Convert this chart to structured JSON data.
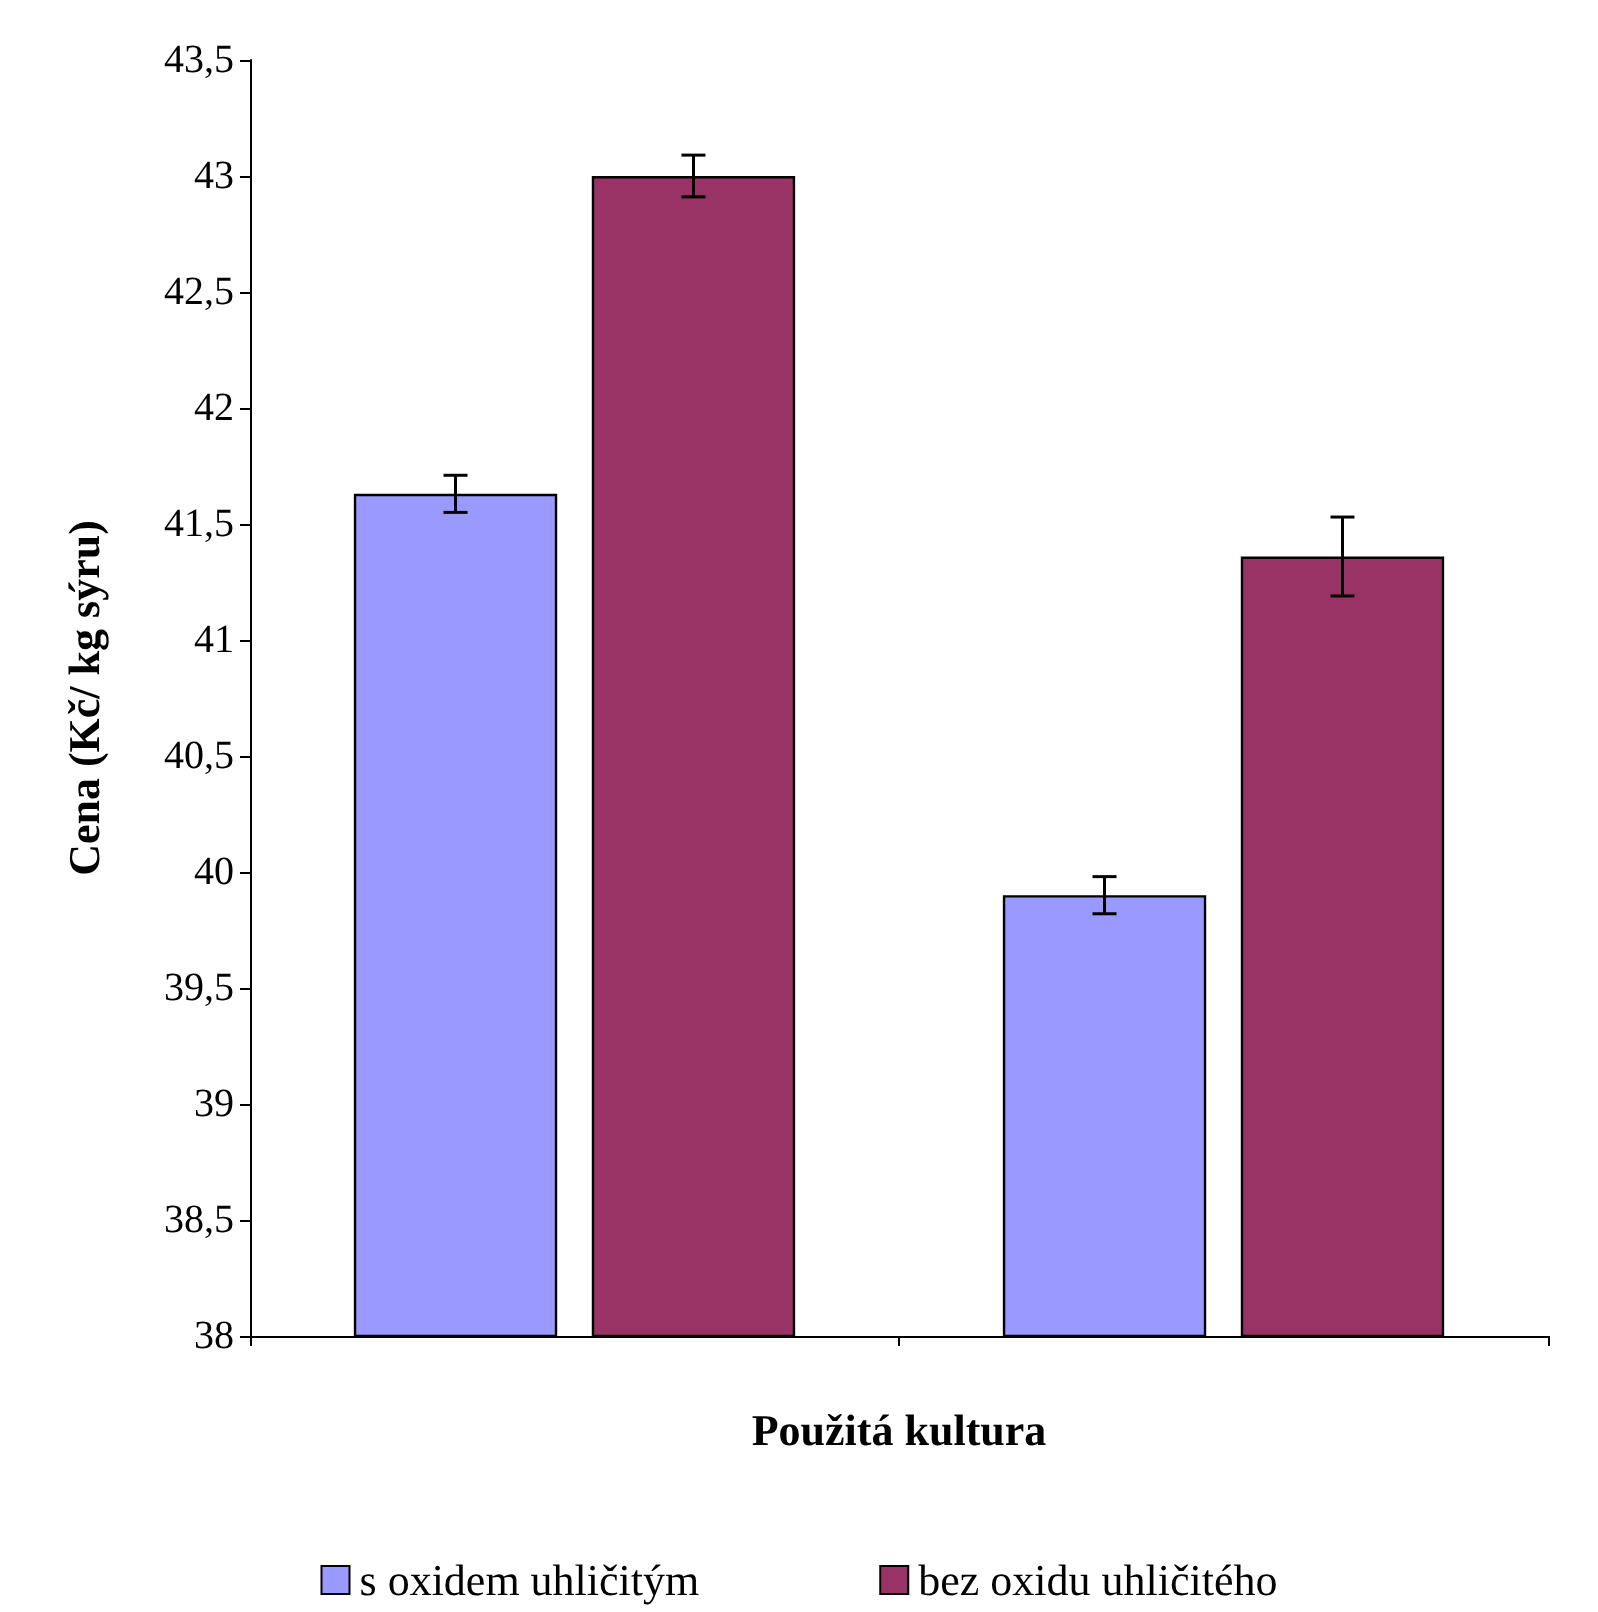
{
  "chart_data": {
    "type": "bar",
    "xlabel": "Použitá kultura",
    "ylabel": "Cena (Kč/ kg sýru)",
    "categories": [
      null,
      null
    ],
    "series": [
      {
        "name": "s oxidem uhličitým",
        "color": "#9999ff",
        "values": [
          41.63,
          39.9
        ],
        "errors": [
          0.08,
          0.08
        ]
      },
      {
        "name": "bez oxidu uhličitého",
        "color": "#993366",
        "values": [
          43.0,
          41.36
        ],
        "errors": [
          0.09,
          0.17
        ]
      }
    ],
    "ylim": [
      38,
      43.5
    ],
    "yticks": [
      {
        "value": 38,
        "label": "38"
      },
      {
        "value": 38.5,
        "label": "38,5"
      },
      {
        "value": 39,
        "label": "39"
      },
      {
        "value": 39.5,
        "label": "39,5"
      },
      {
        "value": 40,
        "label": "40"
      },
      {
        "value": 40.5,
        "label": "40,5"
      },
      {
        "value": 41,
        "label": "41"
      },
      {
        "value": 41.5,
        "label": "41,5"
      },
      {
        "value": 42,
        "label": "42"
      },
      {
        "value": 42.5,
        "label": "42,5"
      },
      {
        "value": 43,
        "label": "43"
      },
      {
        "value": 43.5,
        "label": "43,5"
      }
    ],
    "grid": false,
    "legend": "bottom"
  }
}
